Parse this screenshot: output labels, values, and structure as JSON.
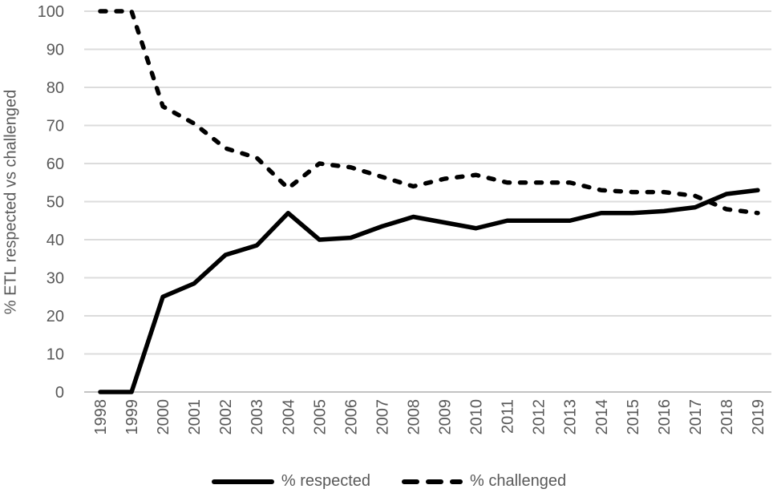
{
  "chart_data": {
    "type": "line",
    "title": "",
    "xlabel": "",
    "ylabel": "% ETL respected vs challenged",
    "ylim": [
      0,
      100
    ],
    "y_ticks": [
      0,
      10,
      20,
      30,
      40,
      50,
      60,
      70,
      80,
      90,
      100
    ],
    "grid": true,
    "legend_position": "bottom",
    "categories": [
      "1998",
      "1999",
      "2000",
      "2001",
      "2002",
      "2003",
      "2004",
      "2005",
      "2006",
      "2007",
      "2008",
      "2009",
      "2010",
      "2011",
      "2012",
      "2013",
      "2014",
      "2015",
      "2016",
      "2017",
      "2018",
      "2019"
    ],
    "series": [
      {
        "name": "% respected",
        "style": "solid",
        "color": "#000000",
        "values": [
          0,
          0,
          25,
          28.5,
          36,
          38.5,
          47,
          40,
          40.5,
          43.5,
          46,
          44.5,
          43,
          45,
          45,
          45,
          47,
          47,
          47.5,
          48.5,
          52,
          53
        ]
      },
      {
        "name": "% challenged",
        "style": "dashed",
        "color": "#000000",
        "values": [
          100,
          100,
          75,
          70.5,
          64,
          61.5,
          53.5,
          60,
          59,
          56.5,
          54,
          56,
          57,
          55,
          55,
          55,
          53,
          52.5,
          52.5,
          51.5,
          48,
          47
        ]
      }
    ]
  },
  "colors": {
    "background": "#ffffff",
    "line": "#000000",
    "gridline": "#dcdcdc",
    "axis_line": "#c3c3c3",
    "axis_text": "#595959"
  }
}
